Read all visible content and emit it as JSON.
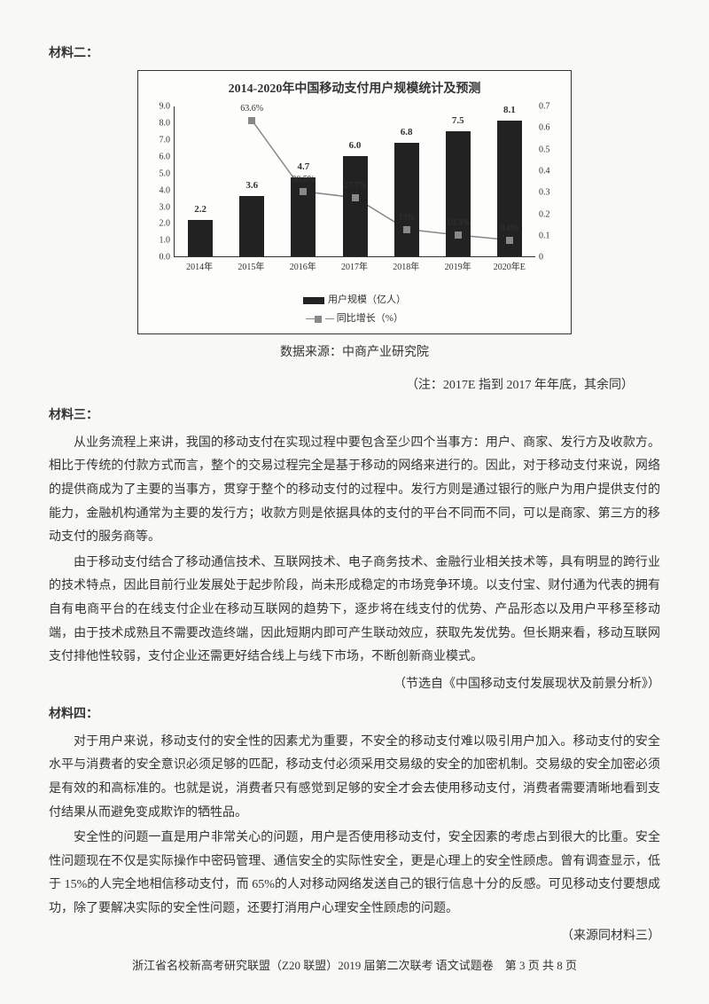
{
  "material2": {
    "title": "材料二：",
    "chart": {
      "type": "bar+line",
      "title": "2014-2020年中国移动支付用户规模统计及预测",
      "categories": [
        "2014年",
        "2015年",
        "2016年",
        "2017年",
        "2018年",
        "2019年",
        "2020年E"
      ],
      "bar_values": [
        2.2,
        3.6,
        4.7,
        6.0,
        6.8,
        7.5,
        8.1
      ],
      "bar_color": "#222222",
      "line_values_pct": [
        null,
        63.6,
        30.5,
        27.7,
        13,
        10.3,
        8.0
      ],
      "line_labels": [
        "",
        "63.6%",
        "30.5%",
        "27.7%",
        "13%",
        "10.3%",
        "8.0%"
      ],
      "line_color": "#888888",
      "y_left_max": 9.0,
      "y_left_ticks": [
        "9.0",
        "8.0",
        "7.0",
        "6.0",
        "5.0",
        "4.0",
        "3.0",
        "2.0",
        "1.0",
        "0.0"
      ],
      "y_right_max": 0.7,
      "y_right_ticks": [
        "0.7",
        "0.6",
        "0.5",
        "0.4",
        "0.3",
        "0.2",
        "0.1",
        "0"
      ],
      "legend_bar": "用户规模（亿人）",
      "legend_line": "同比增长（%）"
    },
    "source": "数据来源：中商产业研究院",
    "note": "（注：2017E 指到 2017 年年底，其余同）"
  },
  "material3": {
    "title": "材料三：",
    "p1": "从业务流程上来讲，我国的移动支付在实现过程中要包含至少四个当事方：用户、商家、发行方及收款方。相比于传统的付款方式而言，整个的交易过程完全是基于移动的网络来进行的。因此，对于移动支付来说，网络的提供商成为了主要的当事方，贯穿于整个的移动支付的过程中。发行方则是通过银行的账户为用户提供支付的能力，金融机构通常为主要的发行方；收款方则是依据具体的支付的平台不同而不同，可以是商家、第三方的移动支付的服务商等。",
    "p2": "由于移动支付结合了移动通信技术、互联网技术、电子商务技术、金融行业相关技术等，具有明显的跨行业的技术特点，因此目前行业发展处于起步阶段，尚未形成稳定的市场竞争环境。以支付宝、财付通为代表的拥有自有电商平台的在线支付企业在移动互联网的趋势下，逐步将在线支付的优势、产品形态以及用户平移至移动端，由于技术成熟且不需要改造终端，因此短期内即可产生联动效应，获取先发优势。但长期来看，移动互联网支付排他性较弱，支付企业还需更好结合线上与线下市场，不断创新商业模式。",
    "cite": "（节选自《中国移动支付发展现状及前景分析》）"
  },
  "material4": {
    "title": "材料四：",
    "p1": "对于用户来说，移动支付的安全性的因素尤为重要，不安全的移动支付难以吸引用户加入。移动支付的安全水平与消费者的安全意识必须足够的匹配，移动支付必须采用交易级的安全的加密机制。交易级的安全加密必须是有效的和高标准的。也就是说，消费者只有感觉到足够的安全才会去使用移动支付，消费者需要清晰地看到支付结果从而避免变成欺诈的牺牲品。",
    "p2": "安全性的问题一直是用户非常关心的问题，用户是否使用移动支付，安全因素的考虑占到很大的比重。安全性问题现在不仅是实际操作中密码管理、通信安全的实际性安全，更是心理上的安全性顾虑。曾有调查显示，低于 15%的人完全地相信移动支付，而 65%的人对移动网络发送自己的银行信息十分的反感。可见移动支付要想成功，除了要解决实际的安全性问题，还要打消用户心理安全性顾虑的问题。",
    "cite": "（来源同材料三）"
  },
  "footer": "浙江省名校新高考研究联盟（Z20 联盟）2019 届第二次联考 语文试题卷　第 3 页 共 8 页"
}
